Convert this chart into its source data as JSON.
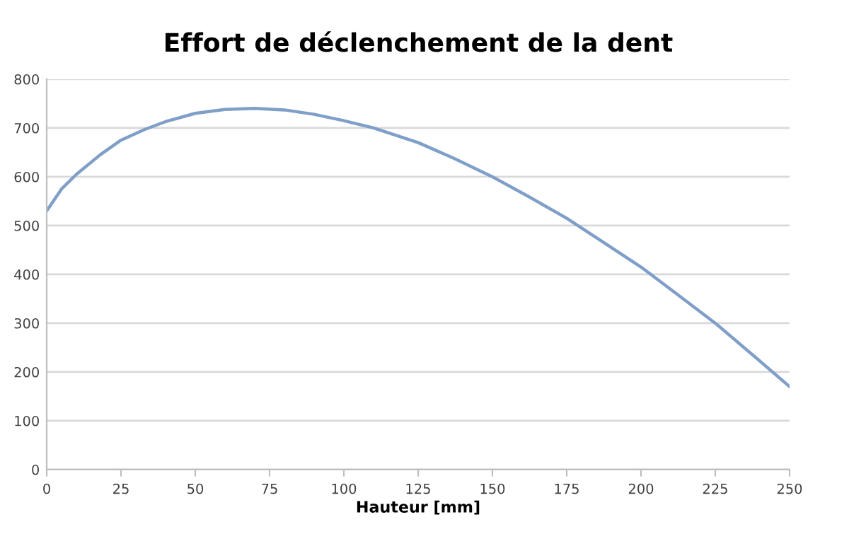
{
  "chart_data": {
    "type": "line",
    "title": "Effort de déclenchement de la dent",
    "xlabel": "Hauteur [mm]",
    "x": [
      0,
      5,
      10,
      18,
      25,
      33,
      40,
      50,
      60,
      70,
      80,
      90,
      100,
      110,
      125,
      137,
      150,
      162,
      175,
      187,
      200,
      212,
      225,
      237,
      250
    ],
    "series": [
      {
        "color": "#7f9fc8",
        "values": [
          530,
          575,
          605,
          645,
          675,
          697,
          713,
          730,
          738,
          740,
          737,
          728,
          715,
          700,
          670,
          638,
          600,
          560,
          515,
          467,
          415,
          360,
          300,
          238,
          170
        ]
      }
    ],
    "xlim": [
      0,
      250
    ],
    "xticks": [
      0,
      25,
      50,
      75,
      100,
      125,
      150,
      175,
      200,
      225,
      250
    ],
    "ylim": [
      0,
      800
    ],
    "yticks": [
      0,
      100,
      200,
      300,
      400,
      500,
      600,
      700,
      800
    ],
    "grid": "y",
    "legend": false,
    "marker": "none",
    "line_style": "solid"
  }
}
